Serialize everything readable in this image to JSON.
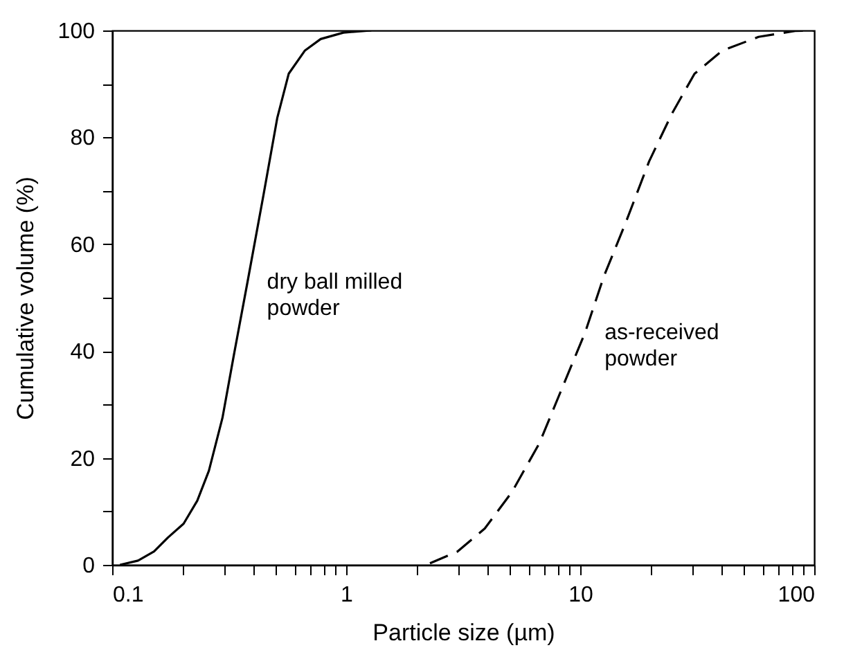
{
  "chart_data": {
    "type": "line",
    "xlabel": "Particle size (µm)",
    "ylabel": "Cumulative volume (%)",
    "log": "x",
    "grid": false,
    "marker": "none",
    "xlim": [
      0.1,
      100
    ],
    "ylim": [
      0,
      100
    ],
    "xticks": [
      0.1,
      {
        "value": 0.2,
        "label": null
      },
      {
        "value": 0.3,
        "label": null
      },
      {
        "value": 0.4,
        "label": null
      },
      {
        "value": 0.5,
        "label": null
      },
      {
        "value": 0.6,
        "label": null
      },
      {
        "value": 0.7,
        "label": null
      },
      {
        "value": 0.8,
        "label": null
      },
      {
        "value": 0.9,
        "label": null
      },
      1,
      {
        "value": 2,
        "label": null
      },
      {
        "value": 3,
        "label": null
      },
      {
        "value": 4,
        "label": null
      },
      {
        "value": 5,
        "label": null
      },
      {
        "value": 6,
        "label": null
      },
      {
        "value": 7,
        "label": null
      },
      {
        "value": 8,
        "label": null
      },
      {
        "value": 9,
        "label": null
      },
      10,
      {
        "value": 20,
        "label": null
      },
      {
        "value": 30,
        "label": null
      },
      {
        "value": 40,
        "label": null
      },
      {
        "value": 50,
        "label": null
      },
      {
        "value": 60,
        "label": null
      },
      {
        "value": 70,
        "label": null
      },
      {
        "value": 80,
        "label": null
      },
      {
        "value": 90,
        "label": null
      },
      100
    ],
    "yticks": [
      0,
      {
        "value": 10,
        "label": null
      },
      20,
      {
        "value": 30,
        "label": null
      },
      40,
      {
        "value": 50,
        "label": null
      },
      60,
      {
        "value": 70,
        "label": null
      },
      80,
      {
        "value": 90,
        "label": null
      },
      100
    ],
    "series": [
      {
        "name": "dry ball milled powder",
        "color": "#000000",
        "line_style": "solid",
        "x": [
          0.108,
          0.129,
          0.151,
          0.173,
          0.202,
          0.231,
          0.259,
          0.296,
          0.331,
          0.379,
          0.444,
          0.508,
          0.568,
          0.665,
          0.778,
          0.973,
          1.28
        ],
        "values": [
          0,
          0.8,
          2.5,
          5.1,
          7.7,
          12,
          17.6,
          27.5,
          39.2,
          53,
          69.4,
          83.7,
          91.9,
          96.2,
          98.4,
          99.6,
          100
        ]
      },
      {
        "name": "as-received powder",
        "color": "#000000",
        "line_style": "dashed",
        "x": [
          2.28,
          2.99,
          3.91,
          5.12,
          6.7,
          8.39,
          10.5,
          12.6,
          15.7,
          19.7,
          24.7,
          30.8,
          40.4,
          57.8,
          82.8,
          100
        ],
        "values": [
          0.3,
          2.5,
          6.8,
          13.7,
          22.8,
          33.2,
          43.5,
          53.9,
          64.2,
          75.5,
          84.5,
          91.9,
          96.2,
          98.8,
          99.9,
          100
        ]
      }
    ]
  }
}
